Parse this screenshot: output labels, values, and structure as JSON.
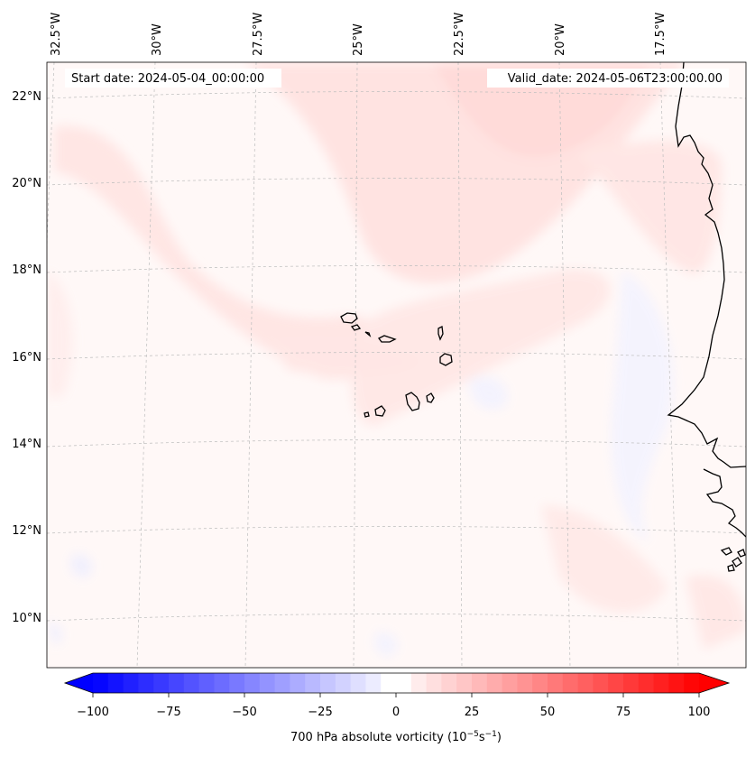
{
  "map": {
    "start_date": "Start date: 2024-05-04_00:00:00",
    "valid_date": "Valid_date: 2024-05-06T23:00:00.00",
    "lon_labels": [
      "32.5°W",
      "30°W",
      "27.5°W",
      "25°W",
      "22.5°W",
      "20°W",
      "17.5°W"
    ],
    "lat_labels": [
      "22°N",
      "20°N",
      "18°N",
      "16°N",
      "14°N",
      "12°N",
      "10°N"
    ],
    "features": [
      "Cape Verde islands",
      "West African coastline"
    ]
  },
  "colorbar": {
    "ticks": [
      "−100",
      "−75",
      "−50",
      "−25",
      "0",
      "25",
      "50",
      "75",
      "100"
    ],
    "tick_values": [
      -100,
      -75,
      -50,
      -25,
      0,
      25,
      50,
      75,
      100
    ],
    "levels_min": -100,
    "levels_max": 100,
    "level_step": 5,
    "label_main": "700 hPa absolute vorticity (10",
    "label_exp1": "−5",
    "label_mid": "s",
    "label_exp2": "−1",
    "label_end": ")",
    "neg_color": "#0000ff",
    "pos_color": "#ff0000",
    "mid_color": "#ffffff"
  }
}
